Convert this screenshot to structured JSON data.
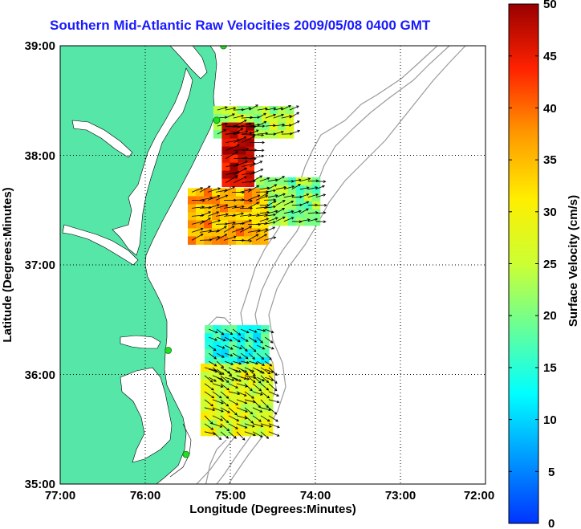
{
  "title": "Southern Mid-Atlantic Raw Velocities 2009/05/08 0400 GMT",
  "map": {
    "xlabel": "Longitude (Degrees:Minutes)",
    "ylabel": "Latitude (Degrees:Minutes)",
    "x_ticks": [
      "77:00",
      "76:00",
      "75:00",
      "74:00",
      "73:00",
      "72:00"
    ],
    "y_ticks": [
      "39:00",
      "38:00",
      "37:00",
      "36:00",
      "35:00"
    ],
    "lon_range": [
      -77,
      -72
    ],
    "lat_range": [
      35,
      39
    ],
    "land_color": "#55e6a8",
    "bathymetry_color": "#9a9a9a",
    "station_color": "#22dd22"
  },
  "colorbar": {
    "label": "Surface Velocity (cm/s)",
    "ticks": [
      "50",
      "45",
      "40",
      "35",
      "30",
      "25",
      "20",
      "15",
      "10",
      "5",
      "0"
    ],
    "range": [
      0,
      50
    ]
  },
  "stations": [
    {
      "lon": -75.08,
      "lat": 39.0
    },
    {
      "lon": -75.16,
      "lat": 38.32
    },
    {
      "lon": -75.73,
      "lat": 36.22
    },
    {
      "lon": -75.52,
      "lat": 35.27
    }
  ],
  "velocity_patches": [
    {
      "region": "delaware-offshore",
      "lon_min": -75.2,
      "lon_max": -74.35,
      "lat_min": 38.2,
      "lat_max": 38.45,
      "speed": 24
    },
    {
      "region": "delaware-nearshore",
      "lon_min": -75.1,
      "lon_max": -74.75,
      "lat_min": 37.75,
      "lat_max": 38.3,
      "speed": 48
    },
    {
      "region": "mid-offshore",
      "lon_min": -74.7,
      "lon_max": -74.0,
      "lat_min": 37.4,
      "lat_max": 37.8,
      "speed": 21
    },
    {
      "region": "virginia-offshore",
      "lon_min": -75.5,
      "lon_max": -74.6,
      "lat_min": 37.25,
      "lat_max": 37.7,
      "speed": 36
    },
    {
      "region": "nc-north",
      "lon_min": -75.3,
      "lon_max": -74.6,
      "lat_min": 36.0,
      "lat_max": 36.45,
      "speed": 15
    },
    {
      "region": "nc-south",
      "lon_min": -75.35,
      "lon_max": -74.55,
      "lat_min": 35.5,
      "lat_max": 36.1,
      "speed": 27
    }
  ]
}
